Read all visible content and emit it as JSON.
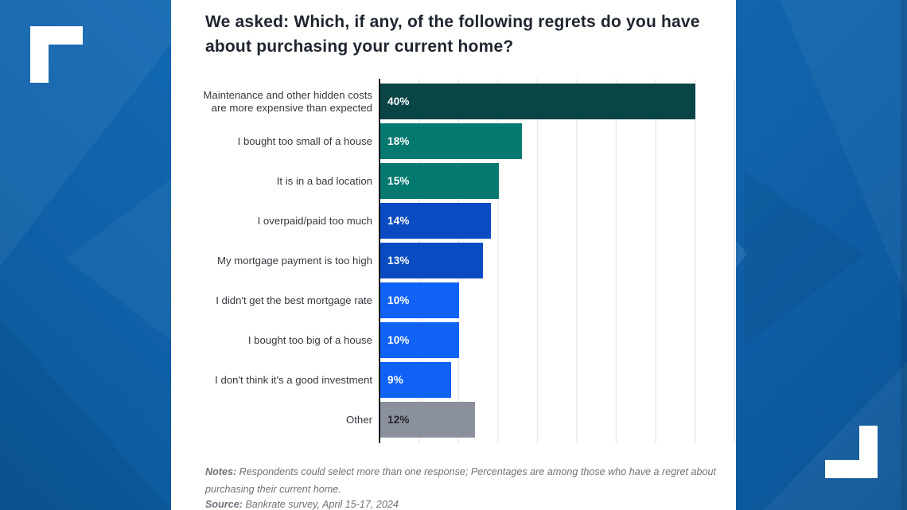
{
  "page": {
    "background_blue": "#0d5ba1",
    "panel_color": "#ffffff",
    "accent_light_blue": "#1269b2",
    "accent_dark_blue": "#0b5696"
  },
  "header": {
    "title": "We asked: Which, if any, of the following regrets do you have about purchasing your current home?"
  },
  "chart_data": {
    "type": "bar",
    "orientation": "horizontal",
    "title": "We asked: Which, if any, of the following regrets do you have about purchasing your current home?",
    "categories": [
      "Maintenance and other hidden costs are more expensive than expected",
      "I bought too small of a house",
      "It is in a bad location",
      "I overpaid/paid too much",
      "My mortgage payment is too high",
      "I didn't get the best mortgage rate",
      "I bought too big of a house",
      "I don't think it's a good investment",
      "Other"
    ],
    "values": [
      40,
      18,
      15,
      14,
      13,
      10,
      10,
      9,
      12
    ],
    "unit": "%",
    "xlabel": "",
    "ylabel": "",
    "xlim": [
      0,
      45
    ],
    "gridline_interval": 5,
    "grid": "vertical, light gray",
    "legend": "none",
    "value_labels": "inside bar, left",
    "axis_color": "#17191d",
    "gridline_color": "#e8eaec",
    "rows": [
      {
        "label_lines": [
          "Maintenance and other hidden costs",
          "are more expensive than expected"
        ],
        "value": 40,
        "value_label": "40%",
        "color": "#0a4546",
        "value_label_color": "#ffffff"
      },
      {
        "label_lines": [
          "I bought too small of a house"
        ],
        "value": 18,
        "value_label": "18%",
        "color": "#04796f",
        "value_label_color": "#ffffff"
      },
      {
        "label_lines": [
          "It is in a bad location"
        ],
        "value": 15,
        "value_label": "15%",
        "color": "#04796f",
        "value_label_color": "#ffffff"
      },
      {
        "label_lines": [
          "I overpaid/paid too much"
        ],
        "value": 14,
        "value_label": "14%",
        "color": "#0a4bc2",
        "value_label_color": "#ffffff"
      },
      {
        "label_lines": [
          "My mortgage payment is too high"
        ],
        "value": 13,
        "value_label": "13%",
        "color": "#0a4bc2",
        "value_label_color": "#ffffff"
      },
      {
        "label_lines": [
          "I didn't get the best mortgage rate"
        ],
        "value": 10,
        "value_label": "10%",
        "color": "#0f62f5",
        "value_label_color": "#ffffff"
      },
      {
        "label_lines": [
          "I bought too big of a house"
        ],
        "value": 10,
        "value_label": "10%",
        "color": "#0f62f5",
        "value_label_color": "#ffffff"
      },
      {
        "label_lines": [
          "I don't think it's a good investment"
        ],
        "value": 9,
        "value_label": "9%",
        "color": "#0f62f5",
        "value_label_color": "#ffffff"
      },
      {
        "label_lines": [
          "Other"
        ],
        "value": 12,
        "value_label": "12%",
        "color": "#8b909d",
        "value_label_color": "#24282e"
      }
    ]
  },
  "footer": {
    "notes_label": "Notes:",
    "notes_text": " Respondents could select more than one response; Percentages are among those who have a regret about purchasing their current home.",
    "source_label": "Source:",
    "source_text": " Bankrate survey, April 15-17, 2024"
  }
}
